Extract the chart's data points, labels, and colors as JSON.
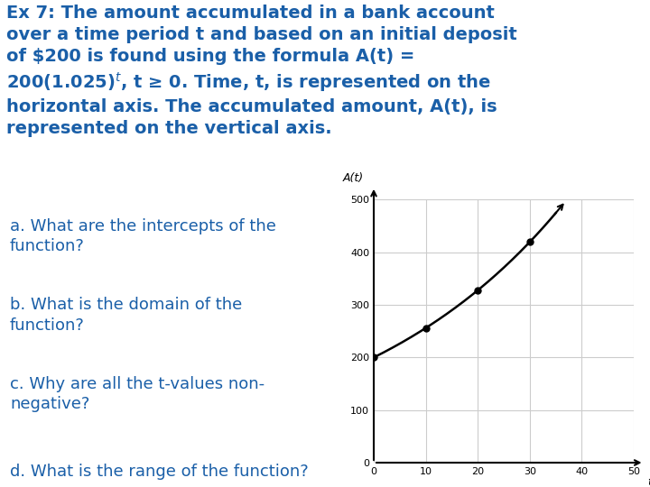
{
  "title_line1": "Ex 7: The amount accumulated in a bank account",
  "title_line2": "over a time period t and based on an initial deposit",
  "title_line3": "of $200 is found using the formula A(t) =",
  "title_line4_pre": "200(1.025)",
  "title_line4_post": ", t ≥ 0. Time, t, is represented on the",
  "title_line5": "horizontal axis. The accumulated amount, A(t), is",
  "title_line6": "represented on the vertical axis.",
  "qa": "a. What are the intercepts of the\nfunction?",
  "qb": "b. What is the domain of the\nfunction?",
  "qc": "c. Why are all the t-values non-\nnegative?",
  "qd": "d. What is the range of the function?",
  "text_color": "#1a5fa8",
  "title_fontsize": 14.0,
  "qa_fontsize": 13.0,
  "background_color": "#ffffff",
  "formula_base": 200,
  "formula_rate": 1.025,
  "t_min": 0,
  "t_max": 35,
  "x_axis_max": 50,
  "y_axis_max": 500,
  "x_ticks": [
    0,
    10,
    20,
    30,
    40,
    50
  ],
  "y_ticks": [
    0,
    100,
    200,
    300,
    400,
    500
  ],
  "dot_t_values": [
    0,
    10,
    20,
    30
  ],
  "xlabel": "t",
  "ylabel": "A(t)",
  "line_color": "#000000",
  "dot_color": "#000000",
  "grid_color": "#cccccc"
}
